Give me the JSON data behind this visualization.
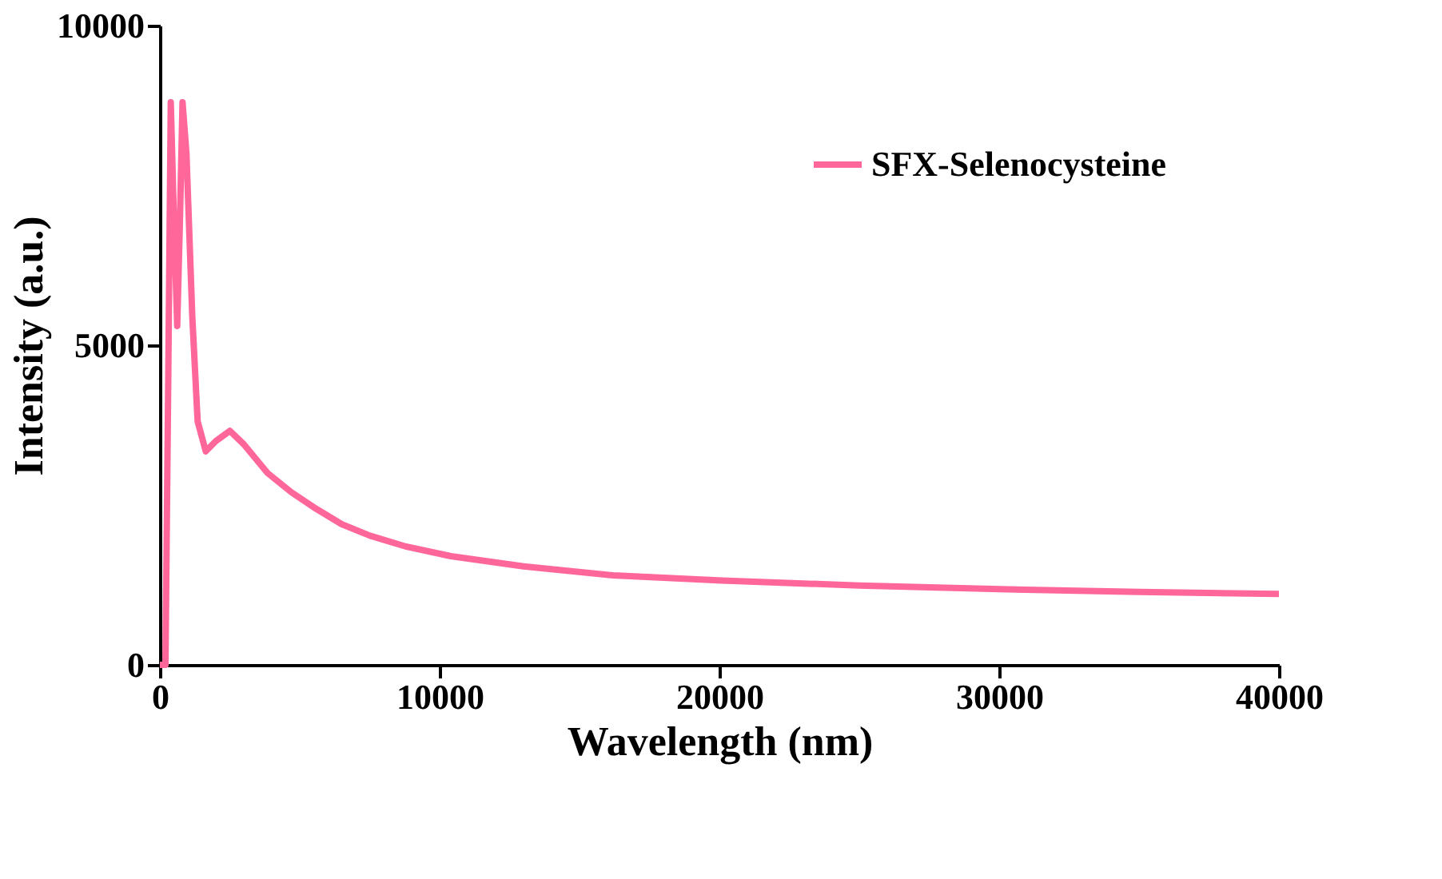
{
  "chart_data": {
    "type": "line",
    "xlabel": "Wavelength (nm)",
    "ylabel": "Intensity (a.u.)",
    "xlim": [
      0,
      40000
    ],
    "xticks": [
      0,
      10000,
      20000,
      30000,
      40000
    ],
    "ylim": [
      0,
      10000
    ],
    "yticks": [
      0,
      5000,
      10000
    ],
    "grid": false,
    "legend": "top right",
    "marker": "none",
    "line_style": "solid",
    "series": [
      {
        "name": "SFX-Selenocysteine",
        "color": "#ff6699",
        "x": [
          0,
          200,
          300,
          390,
          500,
          620,
          720,
          810,
          950,
          1160,
          1350,
          1640,
          2000,
          2500,
          3000,
          3850,
          4700,
          5590,
          6500,
          7510,
          8800,
          10400,
          13000,
          16200,
          20100,
          25000,
          30300,
          35000,
          40000
        ],
        "values": [
          0,
          0,
          4500,
          8800,
          7000,
          5300,
          7000,
          8800,
          8000,
          5440,
          3810,
          3340,
          3500,
          3660,
          3450,
          3000,
          2700,
          2440,
          2200,
          2020,
          1850,
          1700,
          1540,
          1400,
          1320,
          1240,
          1180,
          1140,
          1110
        ]
      }
    ]
  }
}
